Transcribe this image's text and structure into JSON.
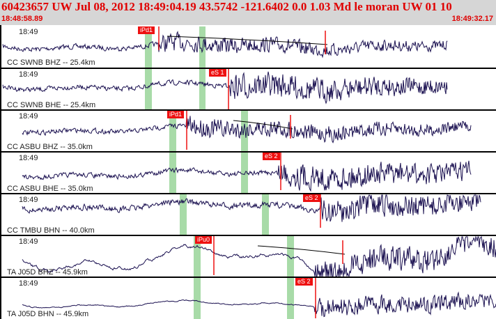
{
  "header": {
    "title": "60423657 UW Jul 08, 2012 18:49:04.19    43.5742 -121.6402   0.0 1.03 Md le moran UW 01   10",
    "time_start": "18:48:58.89",
    "time_end": "18:49:32.17"
  },
  "colors": {
    "header_bg": "#d6d6d6",
    "header_text": "#e00000",
    "trace": "#1a1050",
    "pick_tag": "#ee1111",
    "window_band": "#a8dba8",
    "separator": "#000000"
  },
  "traces": [
    {
      "time_label": "18:49",
      "station": "CC SWNB BHZ -- 25.4km",
      "pick": "iPd1"
    },
    {
      "time_label": "18:49",
      "station": "CC SWNB BHE -- 25.4km",
      "pick": "eS 1"
    },
    {
      "time_label": "18:49",
      "station": "CC ASBU BHZ -- 35.0km",
      "pick": "iPd1"
    },
    {
      "time_label": "18:49",
      "station": "CC ASBU BHE -- 35.0km",
      "pick": "eS 2"
    },
    {
      "time_label": "18:49",
      "station": "CC TMBU BHN -- 40.0km",
      "pick": "eS 2"
    },
    {
      "time_label": "18:49",
      "station": "TA J05D BHZ -- 45.9km",
      "pick": "iPu0"
    },
    {
      "time_label": "18:49",
      "station": "TA J05D BHN -- 45.9km",
      "pick": "eS 2"
    }
  ]
}
